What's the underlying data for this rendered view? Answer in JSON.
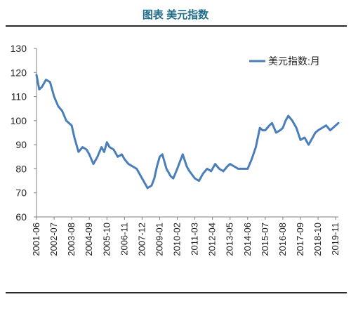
{
  "header": {
    "title": "图表 美元指数"
  },
  "chart_data": {
    "type": "line",
    "title": "图表 美元指数",
    "xlabel": "",
    "ylabel": "",
    "ylim": [
      60,
      130
    ],
    "yticks": [
      60,
      70,
      80,
      90,
      100,
      110,
      120,
      130
    ],
    "xticks": [
      "2001-06",
      "2002-07",
      "2003-08",
      "2004-09",
      "2005-10",
      "2006-11",
      "2007-12",
      "2009-01",
      "2010-02",
      "2011-03",
      "2012-04",
      "2013-05",
      "2014-06",
      "2015-07",
      "2016-08",
      "2017-09",
      "2018-10",
      "2019-11"
    ],
    "grid": false,
    "legend": "top-right",
    "color": "#4a7ebb",
    "series": [
      {
        "name": "美元指数:月",
        "x": [
          "2001-06",
          "2001-08",
          "2001-10",
          "2002-01",
          "2002-04",
          "2002-07",
          "2002-10",
          "2003-01",
          "2003-04",
          "2003-08",
          "2003-10",
          "2004-01",
          "2004-04",
          "2004-07",
          "2004-09",
          "2004-12",
          "2005-03",
          "2005-06",
          "2005-08",
          "2005-10",
          "2005-12",
          "2006-03",
          "2006-06",
          "2006-09",
          "2006-11",
          "2007-02",
          "2007-05",
          "2007-08",
          "2007-12",
          "2008-03",
          "2008-04",
          "2008-07",
          "2008-09",
          "2008-11",
          "2009-01",
          "2009-03",
          "2009-06",
          "2009-09",
          "2009-11",
          "2010-02",
          "2010-06",
          "2010-09",
          "2010-11",
          "2011-03",
          "2011-06",
          "2011-09",
          "2011-12",
          "2012-03",
          "2012-06",
          "2012-09",
          "2012-12",
          "2013-03",
          "2013-05",
          "2013-08",
          "2013-11",
          "2014-02",
          "2014-06",
          "2014-09",
          "2014-12",
          "2015-03",
          "2015-05",
          "2015-07",
          "2015-10",
          "2015-12",
          "2016-03",
          "2016-06",
          "2016-08",
          "2016-10",
          "2016-12",
          "2017-03",
          "2017-06",
          "2017-09",
          "2017-12",
          "2018-03",
          "2018-06",
          "2018-08",
          "2018-10",
          "2019-01",
          "2019-04",
          "2019-07",
          "2019-11",
          "2020-01"
        ],
        "values": [
          119,
          113,
          114,
          117,
          116,
          110,
          106,
          104,
          100,
          98,
          93,
          87,
          89,
          88,
          86,
          82,
          85,
          89,
          87,
          91,
          89,
          88,
          85,
          86,
          84,
          82,
          81,
          80,
          76,
          73,
          72,
          73,
          76,
          81,
          85,
          86,
          80,
          77,
          76,
          80,
          86,
          81,
          79,
          76,
          75,
          78,
          80,
          79,
          82,
          80,
          79,
          81,
          82,
          81,
          80,
          80,
          80,
          84,
          89,
          97,
          96,
          96,
          98,
          99,
          95,
          96,
          97,
          100,
          102,
          100,
          97,
          92,
          93,
          90,
          93,
          95,
          96,
          97,
          98,
          96,
          98,
          99
        ]
      }
    ]
  }
}
